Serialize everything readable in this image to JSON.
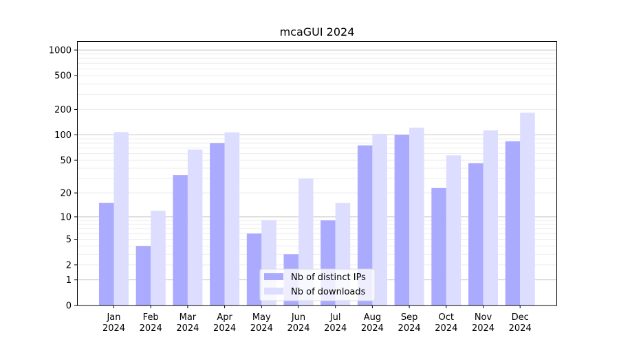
{
  "chart_data": {
    "type": "bar",
    "title": "mcaGUI 2024",
    "xlabel": "",
    "ylabel": "",
    "yscale": "symlog (log10(1+y))",
    "ylim": [
      0,
      1270
    ],
    "yticks": [
      0,
      1,
      2,
      5,
      10,
      20,
      50,
      100,
      200,
      500,
      1000
    ],
    "ytick_labels": [
      "0",
      "1",
      "2",
      "5",
      "10",
      "20",
      "50",
      "100",
      "200",
      "500",
      "1000"
    ],
    "grid": true,
    "legend_placement": "bottom-center",
    "categories": [
      "Jan\n2024",
      "Feb\n2024",
      "Mar\n2024",
      "Apr\n2024",
      "May\n2024",
      "Jun\n2024",
      "Jul\n2024",
      "Aug\n2024",
      "Sep\n2024",
      "Oct\n2024",
      "Nov\n2024",
      "Dec\n2024"
    ],
    "series": [
      {
        "name": "Nb of distinct IPs",
        "color": "#aaaaff",
        "values": [
          15,
          4,
          33,
          80,
          6,
          3,
          9,
          75,
          100,
          23,
          46,
          84
        ]
      },
      {
        "name": "Nb of downloads",
        "color": "#ddddff",
        "values": [
          108,
          12,
          67,
          107,
          9,
          30,
          15,
          103,
          122,
          57,
          113,
          183
        ]
      }
    ]
  }
}
